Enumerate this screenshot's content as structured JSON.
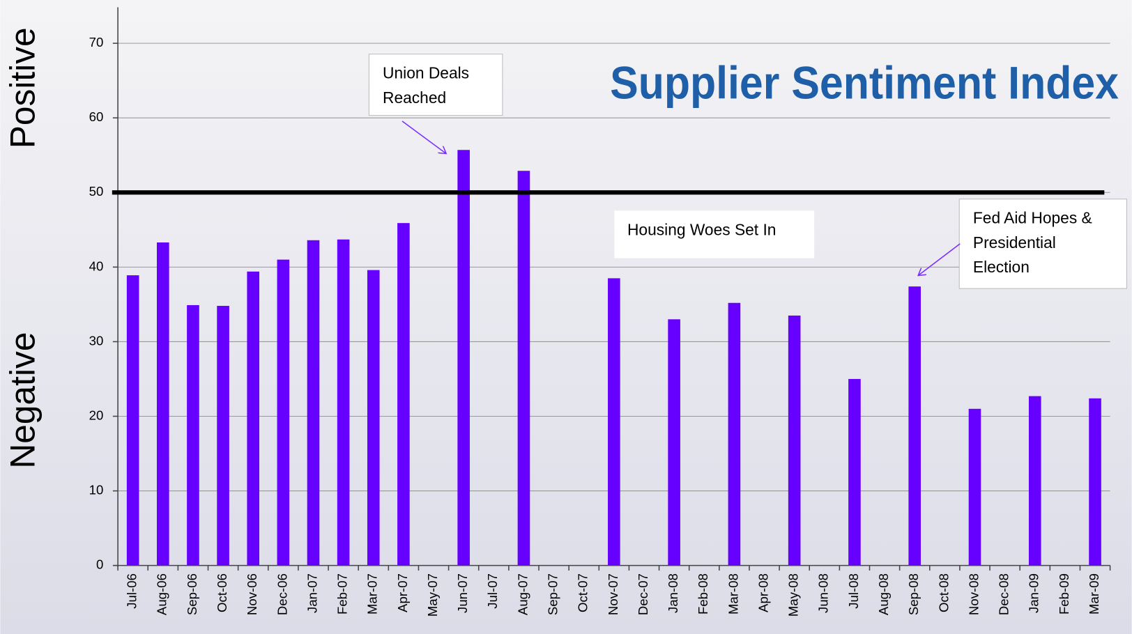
{
  "chart_data": {
    "type": "bar",
    "title": "Supplier Sentiment Index",
    "side_labels": [
      "Positive",
      "Negative"
    ],
    "categories": [
      "Jul-06",
      "Aug-06",
      "Sep-06",
      "Oct-06",
      "Nov-06",
      "Dec-06",
      "Jan-07",
      "Feb-07",
      "Mar-07",
      "Apr-07",
      "May-07",
      "Jun-07",
      "Jul-07",
      "Aug-07",
      "Sep-07",
      "Oct-07",
      "Nov-07",
      "Dec-07",
      "Jan-08",
      "Feb-08",
      "Mar-08",
      "Apr-08",
      "May-08",
      "Jun-08",
      "Jul-08",
      "Aug-08",
      "Sep-08",
      "Oct-08",
      "Nov-08",
      "Dec-08",
      "Jan-09",
      "Feb-09",
      "Mar-09"
    ],
    "values": [
      38.9,
      43.3,
      34.9,
      34.8,
      39.4,
      41.0,
      43.6,
      43.7,
      39.6,
      45.9,
      null,
      55.7,
      null,
      52.9,
      null,
      null,
      38.5,
      null,
      33.0,
      null,
      35.2,
      null,
      33.5,
      null,
      25.0,
      null,
      37.4,
      null,
      21.0,
      null,
      22.7,
      null,
      22.4
    ],
    "color": "#6600ff",
    "ylim": [
      0,
      70
    ],
    "yticks": [
      0,
      10,
      20,
      30,
      40,
      50,
      60,
      70
    ],
    "grid": true,
    "reference_line": 50,
    "annotations": [
      {
        "text": [
          "Union Deals",
          "Reached"
        ]
      },
      {
        "text": [
          "Housing Woes Set In"
        ]
      },
      {
        "text": [
          "Fed Aid Hopes &",
          "Presidential",
          "Election"
        ]
      }
    ]
  }
}
